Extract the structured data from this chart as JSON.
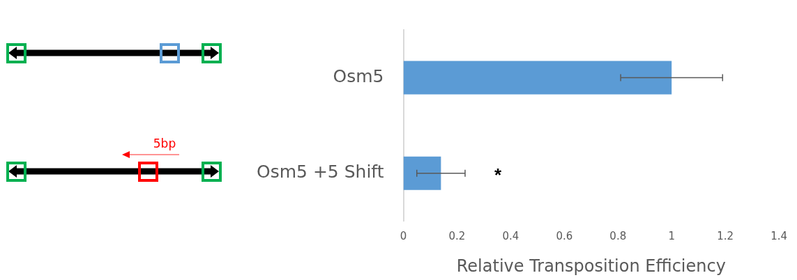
{
  "chart_data": {
    "type": "bar",
    "orientation": "horizontal",
    "xlabel": "Relative Transposition Efficiency",
    "categories": [
      "Osm5",
      "Osm5 +5 Shift"
    ],
    "values": [
      1.0,
      0.14
    ],
    "color": "#5b9bd5",
    "errors": [
      [
        0.81,
        1.19
      ],
      [
        0.05,
        0.23
      ]
    ],
    "xlim": [
      0,
      1.4
    ],
    "xticks": [
      0,
      0.2,
      0.4,
      0.6,
      0.8,
      1,
      1.2,
      1.4
    ],
    "grid": false,
    "legend": false,
    "annotations": [
      "5bp",
      "*"
    ]
  }
}
